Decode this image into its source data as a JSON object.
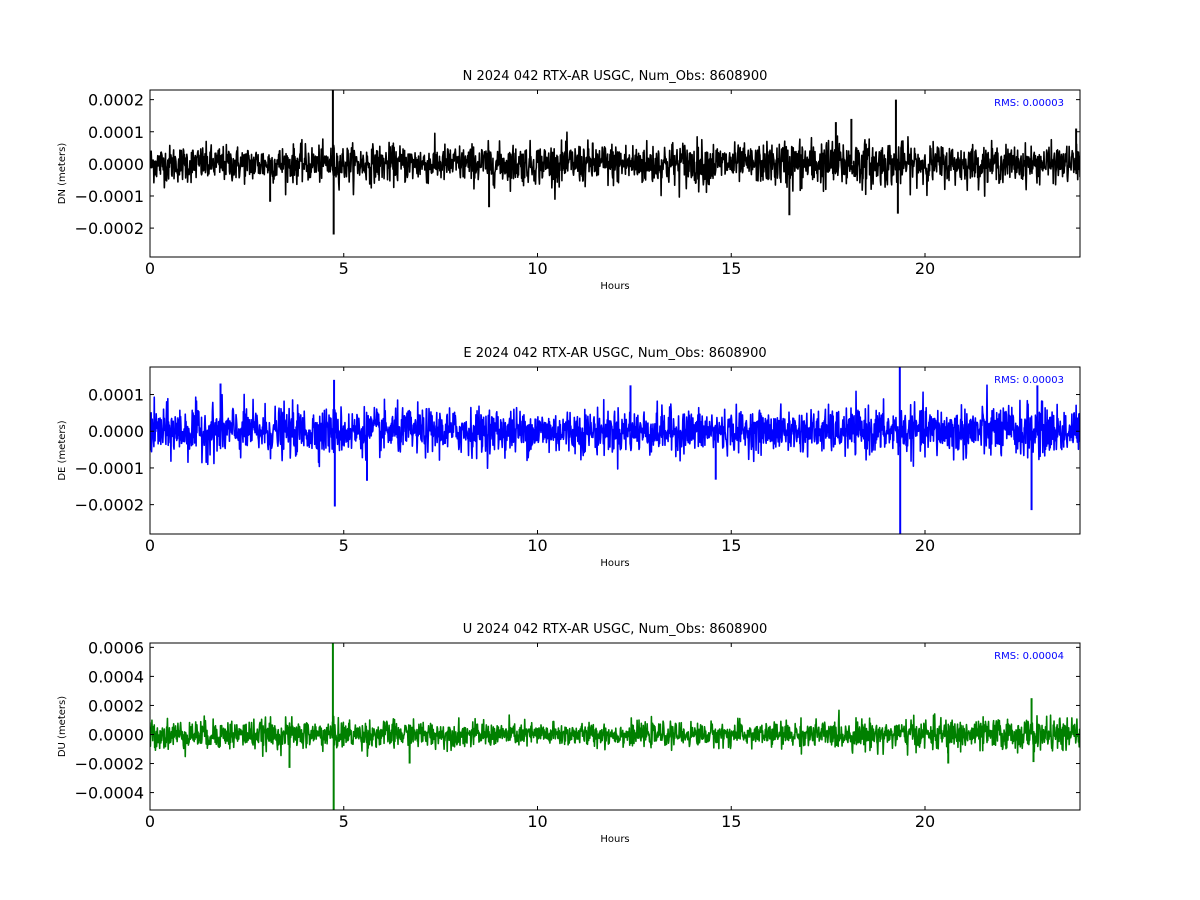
{
  "chart_data": [
    {
      "type": "line",
      "component": "N",
      "title": "N 2024 042 RTX-AR  USGC, Num_Obs: 8608900",
      "xlabel": "Hours",
      "ylabel": "DN (meters)",
      "xlim": [
        0,
        24
      ],
      "ylim": [
        -0.00029,
        0.00023
      ],
      "xticks": [
        0,
        5,
        10,
        15,
        20
      ],
      "xtick_labels": [
        "0",
        "5",
        "10",
        "15",
        "20"
      ],
      "yticks": [
        -0.0002,
        -0.0001,
        0.0,
        0.0001,
        0.0002
      ],
      "ytick_labels": [
        "−0.0002",
        "−0.0001",
        "0.0000",
        "0.0001",
        "0.0002"
      ],
      "color": "#000000",
      "rms_label": "RMS:  0.00003",
      "rms_color": "#0000ff",
      "noise_band": [
        [
          0,
          7.5e-05
        ],
        [
          3,
          7.2e-05
        ],
        [
          6,
          7.5e-05
        ],
        [
          9,
          7.8e-05
        ],
        [
          12,
          8.5e-05
        ],
        [
          14,
          9.5e-05
        ],
        [
          15.5,
          7e-05
        ],
        [
          16.5,
          0.0001
        ],
        [
          18,
          0.0001
        ],
        [
          19.5,
          8.5e-05
        ],
        [
          22,
          7.2e-05
        ],
        [
          24,
          7.2e-05
        ]
      ],
      "spikes": [
        [
          3.1,
          -0.000118
        ],
        [
          4.72,
          0.00023
        ],
        [
          4.74,
          -0.00022
        ],
        [
          8.75,
          -0.000135
        ],
        [
          16.5,
          -0.00016
        ],
        [
          17.7,
          0.00013
        ],
        [
          18.1,
          0.00014
        ],
        [
          19.25,
          0.0002
        ],
        [
          19.3,
          -0.000155
        ],
        [
          23.9,
          0.00011
        ]
      ],
      "grid": false
    },
    {
      "type": "line",
      "component": "E",
      "title": "E 2024 042 RTX-AR  USGC, Num_Obs: 8608900",
      "xlabel": "Hours",
      "ylabel": "DE (meters)",
      "xlim": [
        0,
        24
      ],
      "ylim": [
        -0.00028,
        0.000175
      ],
      "xticks": [
        0,
        5,
        10,
        15,
        20
      ],
      "xtick_labels": [
        "0",
        "5",
        "10",
        "15",
        "20"
      ],
      "yticks": [
        -0.0002,
        -0.0001,
        0.0,
        0.0001
      ],
      "ytick_labels": [
        "−0.0002",
        "−0.0001",
        "0.0000",
        "0.0001"
      ],
      "color": "#0000ff",
      "rms_label": "RMS:  0.00003",
      "rms_color": "#0000ff",
      "noise_band": [
        [
          0,
          9e-05
        ],
        [
          2,
          9e-05
        ],
        [
          4,
          8.5e-05
        ],
        [
          6,
          8e-05
        ],
        [
          9,
          8e-05
        ],
        [
          12,
          8e-05
        ],
        [
          14,
          7.8e-05
        ],
        [
          16,
          7e-05
        ],
        [
          18,
          8e-05
        ],
        [
          20,
          8.5e-05
        ],
        [
          22,
          9.5e-05
        ],
        [
          24,
          8.5e-05
        ]
      ],
      "spikes": [
        [
          1.82,
          0.00013
        ],
        [
          4.75,
          0.00014
        ],
        [
          4.77,
          -0.000205
        ],
        [
          5.6,
          -0.000135
        ],
        [
          12.4,
          0.000125
        ],
        [
          14.6,
          -0.000132
        ],
        [
          19.35,
          0.000175
        ],
        [
          19.36,
          -0.00028
        ],
        [
          22.75,
          -0.000215
        ],
        [
          22.9,
          0.000125
        ]
      ],
      "grid": false
    },
    {
      "type": "line",
      "component": "U",
      "title": "U 2024 042 RTX-AR  USGC, Num_Obs: 8608900",
      "xlabel": "Hours",
      "ylabel": "DU (meters)",
      "xlim": [
        0,
        24
      ],
      "ylim": [
        -0.00052,
        0.00063
      ],
      "xticks": [
        0,
        5,
        10,
        15,
        20
      ],
      "xtick_labels": [
        "0",
        "5",
        "10",
        "15",
        "20"
      ],
      "yticks": [
        -0.0004,
        -0.0002,
        0.0,
        0.0002,
        0.0004,
        0.0006
      ],
      "ytick_labels": [
        "−0.0004",
        "−0.0002",
        "0.0000",
        "0.0002",
        "0.0004",
        "0.0006"
      ],
      "color": "#008000",
      "rms_label": "RMS:  0.00004",
      "rms_color": "#0000ff",
      "noise_band": [
        [
          0,
          0.00013
        ],
        [
          3,
          0.00013
        ],
        [
          6,
          0.000125
        ],
        [
          8,
          0.00011
        ],
        [
          12,
          0.0001
        ],
        [
          15,
          0.000105
        ],
        [
          18,
          0.000125
        ],
        [
          21,
          0.00014
        ],
        [
          24,
          0.000135
        ]
      ],
      "spikes": [
        [
          3.6,
          -0.00023
        ],
        [
          4.72,
          0.00063
        ],
        [
          4.74,
          -0.00052
        ],
        [
          6.7,
          -0.0002
        ],
        [
          20.6,
          -0.0002
        ],
        [
          22.75,
          0.00025
        ],
        [
          22.8,
          -0.00019
        ]
      ],
      "grid": false
    }
  ]
}
